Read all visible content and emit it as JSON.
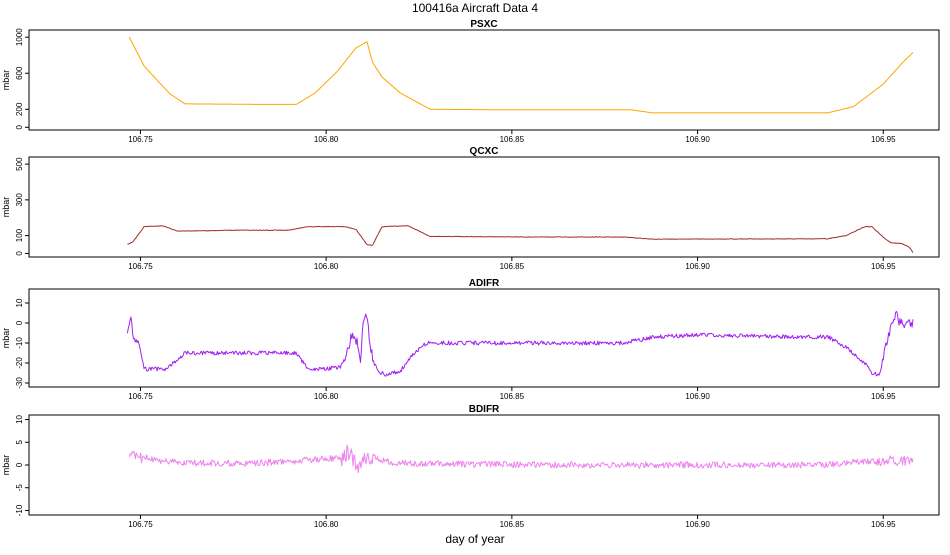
{
  "main_title": "100416a   Aircraft Data 4",
  "x_label": "day of year",
  "chart_data": [
    {
      "type": "line",
      "title": "PSXC",
      "ylabel": "mbar",
      "xlim": [
        106.72,
        106.965
      ],
      "ylim": [
        -30,
        1080
      ],
      "yticks": [
        0,
        200,
        600,
        1000
      ],
      "xticks": [
        "106.75",
        "106.80",
        "106.85",
        "106.90",
        "106.95"
      ],
      "color": "#FFA500",
      "noise": 0,
      "x": [
        106.747,
        106.751,
        106.755,
        106.758,
        106.762,
        106.78,
        106.792,
        106.797,
        106.803,
        106.808,
        106.811,
        106.8125,
        106.815,
        106.82,
        106.828,
        106.845,
        106.882,
        106.888,
        106.9,
        106.935,
        106.942,
        106.95,
        106.955,
        106.958
      ],
      "y": [
        1000,
        680,
        500,
        370,
        260,
        255,
        255,
        380,
        620,
        880,
        950,
        720,
        560,
        380,
        200,
        195,
        195,
        160,
        160,
        160,
        230,
        480,
        710,
        830
      ]
    },
    {
      "type": "line",
      "title": "QCXC",
      "ylabel": "mbar",
      "xlim": [
        106.72,
        106.965
      ],
      "ylim": [
        -20,
        540
      ],
      "yticks": [
        0,
        100,
        300,
        500
      ],
      "xticks": [
        "106.75",
        "106.80",
        "106.85",
        "106.90",
        "106.95"
      ],
      "color": "#A52A2A",
      "noise": 1.5,
      "x": [
        106.7465,
        106.748,
        106.751,
        106.756,
        106.76,
        106.775,
        106.79,
        106.795,
        106.805,
        106.808,
        106.811,
        106.8125,
        106.815,
        106.822,
        106.828,
        106.86,
        106.88,
        106.888,
        106.935,
        106.94,
        106.945,
        106.947,
        106.95,
        106.952,
        106.955,
        106.957,
        106.958
      ],
      "y": [
        50,
        65,
        150,
        155,
        125,
        130,
        130,
        150,
        150,
        135,
        50,
        45,
        150,
        155,
        95,
        92,
        92,
        80,
        82,
        100,
        150,
        150,
        90,
        60,
        55,
        35,
        5
      ]
    },
    {
      "type": "line",
      "title": "ADIFR",
      "ylabel": "mbar",
      "xlim": [
        106.72,
        106.965
      ],
      "ylim": [
        -32,
        17
      ],
      "yticks": [
        -30,
        -20,
        -10,
        0,
        10
      ],
      "xticks": [
        "106.75",
        "106.80",
        "106.85",
        "106.90",
        "106.95"
      ],
      "color": "#A020F0",
      "noise": 1.0,
      "x": [
        106.7465,
        106.7475,
        106.748,
        106.7495,
        106.751,
        106.757,
        106.762,
        106.78,
        106.792,
        106.795,
        106.8,
        106.804,
        106.806,
        106.807,
        106.8085,
        106.8092,
        106.81,
        106.811,
        106.8118,
        106.8128,
        106.814,
        106.816,
        106.82,
        106.823,
        106.827,
        106.84,
        106.88,
        106.888,
        106.9,
        106.93,
        106.935,
        106.94,
        106.945,
        106.947,
        106.949,
        106.9505,
        106.952,
        106.9535,
        106.9545,
        106.956,
        106.958
      ],
      "y": [
        -5,
        4,
        -8,
        -10,
        -23,
        -23,
        -15,
        -15,
        -15,
        -23,
        -23,
        -22,
        -12,
        -5,
        -10,
        -20,
        3,
        5,
        -10,
        -20,
        -24,
        -26,
        -24,
        -16,
        -10,
        -10,
        -10,
        -7,
        -6,
        -7,
        -7,
        -12,
        -20,
        -25,
        -26,
        -12,
        -2,
        4,
        0,
        -1,
        0
      ]
    },
    {
      "type": "line",
      "title": "BDIFR",
      "ylabel": "mbar",
      "xlim": [
        106.72,
        106.965
      ],
      "ylim": [
        -11,
        11
      ],
      "yticks": [
        -10,
        -5,
        0,
        5,
        10
      ],
      "xticks": [
        "106.75",
        "106.80",
        "106.85",
        "106.90",
        "106.95"
      ],
      "color": "#EE82EE",
      "noise": 0.7,
      "x": [
        106.747,
        106.751,
        106.755,
        106.762,
        106.78,
        106.79,
        106.797,
        106.803,
        106.806,
        106.8085,
        106.81,
        106.8115,
        106.813,
        106.818,
        106.825,
        106.86,
        106.9,
        106.935,
        106.94,
        106.95,
        106.958
      ],
      "y": [
        2,
        1.5,
        1,
        0.5,
        0.3,
        0.8,
        1.2,
        1.6,
        2.5,
        0,
        1,
        0.8,
        1.6,
        0.5,
        0.3,
        0,
        0,
        0,
        0.6,
        1,
        1
      ]
    }
  ]
}
